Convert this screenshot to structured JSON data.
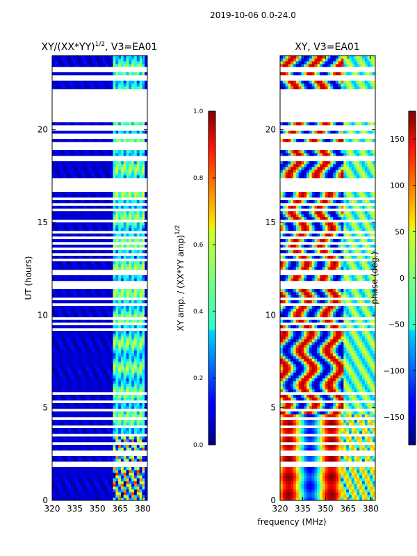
{
  "figure": {
    "suptitle": "2019-10-06 0.0-24.0",
    "xlabel": "frequency (MHz)"
  },
  "chart_data": [
    {
      "type": "heatmap",
      "title": "XY/(XX*YY)",
      "title_exp": "1/2",
      "title_suffix": ", V3=EA01",
      "xlabel": "",
      "ylabel": "UT (hours)",
      "xlim": [
        320,
        383
      ],
      "ylim": [
        0,
        24
      ],
      "xticks": [
        320,
        335,
        350,
        365,
        380
      ],
      "yticks": [
        0,
        5,
        10,
        15,
        20
      ],
      "colormap": "jet",
      "colorbar": {
        "label": "XY amp. / (XX*YY amp)",
        "label_exp": "1/2",
        "range": [
          0.0,
          1.0
        ],
        "ticks": [
          "0.0",
          "0.2",
          "0.4",
          "0.6",
          "0.8",
          "1.0"
        ]
      }
    },
    {
      "type": "heatmap",
      "title": "XY, V3=EA01",
      "xlabel": "",
      "ylabel": "",
      "xlim": [
        320,
        383
      ],
      "ylim": [
        0,
        24
      ],
      "xticks": [
        320,
        335,
        350,
        365,
        380
      ],
      "yticks": [
        0,
        5,
        10,
        15,
        20
      ],
      "colormap": "jet",
      "colorbar": {
        "label": "phase (deg.)",
        "range": [
          -180,
          180
        ],
        "ticks": [
          "150",
          "100",
          "50",
          "0",
          "−50",
          "−100",
          "−150"
        ]
      }
    }
  ]
}
